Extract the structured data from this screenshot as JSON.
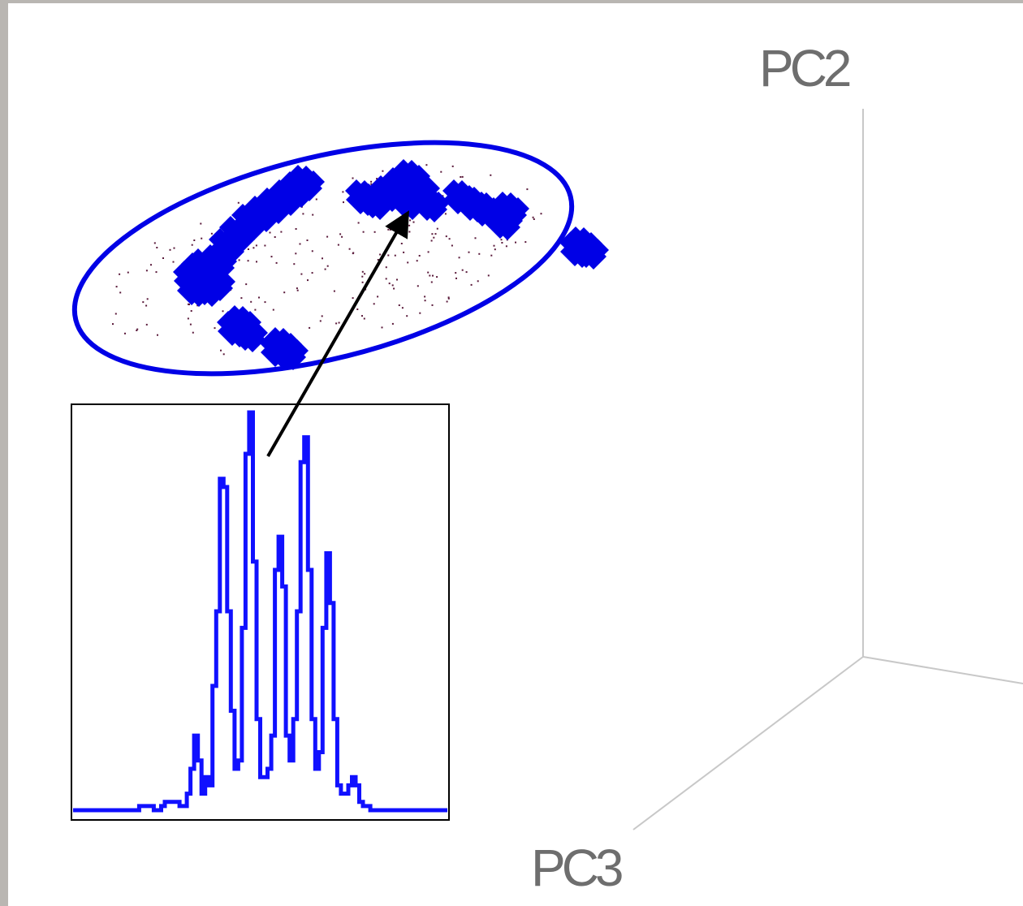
{
  "chart_data": {
    "type": "scatter",
    "axes": {
      "y_label": "PC2",
      "z_label": "PC3",
      "x_label": ""
    },
    "colors": {
      "cluster": "#0000e6",
      "ellipse": "#0000e6",
      "background_points": "#5a1a3a",
      "axis": "#c8c8c8",
      "axis_label": "#6e6e6e",
      "arrow": "#000000",
      "inset_line": "#1010ff",
      "frame": "#b9b6b2"
    },
    "inset": {
      "type": "line",
      "profile": [
        0,
        0,
        0,
        0,
        0,
        0,
        0,
        0,
        0,
        0,
        0,
        0,
        0,
        0,
        0,
        0,
        0,
        0,
        1,
        1,
        1,
        1,
        0,
        0,
        1,
        2,
        2,
        2,
        2,
        1,
        1,
        4,
        10,
        18,
        12,
        4,
        8,
        6,
        30,
        48,
        80,
        78,
        48,
        24,
        10,
        12,
        44,
        86,
        96,
        60,
        22,
        8,
        8,
        10,
        18,
        58,
        66,
        54,
        18,
        12,
        22,
        48,
        84,
        90,
        58,
        22,
        10,
        14,
        44,
        62,
        50,
        22,
        6,
        4,
        4,
        6,
        8,
        6,
        2,
        1,
        1,
        0,
        0,
        0,
        0,
        0,
        0,
        0,
        0,
        0,
        0,
        0,
        0,
        0,
        0,
        0,
        0,
        0,
        0,
        0,
        0,
        0
      ]
    }
  }
}
